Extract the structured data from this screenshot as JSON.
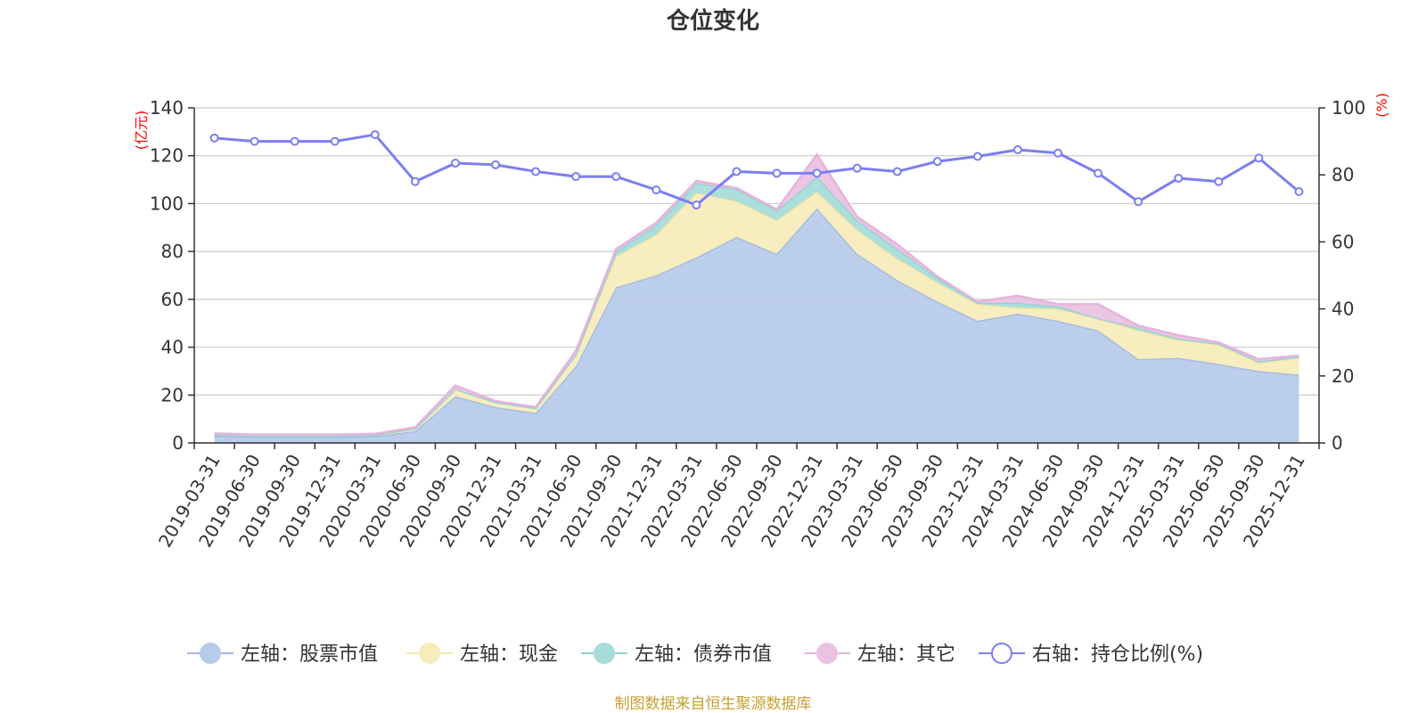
{
  "chart_data": {
    "type": "area",
    "title": "仓位变化",
    "source_text": "制图数据来自恒生聚源数据库",
    "left_axis": {
      "unit": "(亿元)",
      "min": 0,
      "max": 140,
      "ticks": [
        "0",
        "20",
        "40",
        "60",
        "80",
        "100",
        "120",
        "140"
      ]
    },
    "right_axis": {
      "unit": "(%)",
      "min": 0,
      "max": 100,
      "ticks": [
        "0",
        "20",
        "40",
        "60",
        "80",
        "100"
      ]
    },
    "categories": [
      "2019-03-31",
      "2019-06-30",
      "2019-09-30",
      "2019-12-31",
      "2020-03-31",
      "2020-06-30",
      "2020-09-30",
      "2020-12-31",
      "2021-03-31",
      "2021-06-30",
      "2021-09-30",
      "2021-12-31",
      "2022-03-31",
      "2022-06-30",
      "2022-09-30",
      "2022-12-31",
      "2023-03-31",
      "2023-06-30",
      "2023-09-30",
      "2023-12-31",
      "2024-03-31",
      "2024-06-30",
      "2024-09-30",
      "2024-12-31",
      "2025-03-31",
      "2025-06-30",
      "2025-09-30",
      "2025-12-31"
    ],
    "stack_series": [
      {
        "name": "左轴：股票市值",
        "color": "#a2b9e2",
        "fill": "#b7cbea",
        "values": [
          3,
          2.5,
          2.5,
          2.5,
          2.8,
          5,
          19.5,
          15,
          12.5,
          32,
          65,
          70,
          77.5,
          86,
          79,
          98,
          79,
          68,
          59,
          51,
          54,
          51,
          47,
          35,
          35.5,
          33,
          30,
          28.5
        ]
      },
      {
        "name": "左轴：现金",
        "color": "#f5e6a3",
        "fill": "#f8ecbc",
        "values": [
          0.5,
          0.5,
          0.5,
          0.5,
          0.5,
          1,
          3,
          2,
          2,
          5,
          13,
          17,
          27,
          15,
          14,
          7,
          10,
          9,
          8,
          7,
          2.5,
          5,
          5,
          12,
          7.5,
          8,
          3.5,
          7
        ]
      },
      {
        "name": "左轴：债券市值",
        "color": "#8fd4d2",
        "fill": "#a8dcda",
        "values": [
          0,
          0,
          0,
          0,
          0,
          0,
          0,
          0,
          0,
          0,
          2,
          4,
          4,
          5,
          4,
          6,
          4,
          4,
          2,
          0.5,
          2,
          1,
          0,
          1,
          0.5,
          0.5,
          0.5,
          0.5
        ]
      },
      {
        "name": "左轴：其它",
        "color": "#e6b3dc",
        "fill": "#eac3e2",
        "values": [
          0.5,
          0.5,
          0.5,
          0.5,
          0.5,
          0.5,
          1.5,
          0.5,
          0.5,
          1.5,
          1,
          1,
          1,
          0.5,
          0.5,
          9.5,
          1.5,
          2,
          0.5,
          0.5,
          3,
          1,
          6,
          1,
          1.5,
          0.5,
          1,
          0.5
        ]
      }
    ],
    "line_series": {
      "name": "右轴：持仓比例(%)",
      "color": "#7b7ff0",
      "values": [
        91,
        90,
        90,
        90,
        92,
        78,
        83.5,
        83,
        81,
        79.5,
        79.5,
        75.5,
        71,
        81,
        80.5,
        80.5,
        82,
        81,
        84,
        85.5,
        87.5,
        86.5,
        80.5,
        72,
        79,
        78,
        85,
        75
      ]
    }
  }
}
